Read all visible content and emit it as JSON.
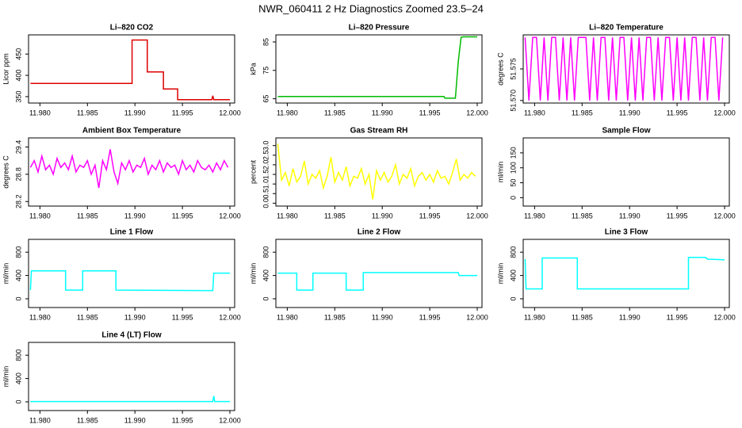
{
  "title": "NWR_060411  2 Hz Diagnostics Zoomed 23.5–24",
  "chart_data": [
    {
      "type": "line",
      "title": "Li–820 CO2",
      "ylabel": "Licor ppm",
      "color": "#dd0000",
      "x": [
        11.979,
        11.9897,
        11.9897,
        11.9913,
        11.9913,
        11.993,
        11.993,
        11.9945,
        11.9945,
        11.9981,
        11.9982,
        11.9983,
        12.0
      ],
      "values": [
        381,
        381,
        483,
        483,
        408,
        408,
        368,
        368,
        343,
        343,
        352,
        343,
        343
      ],
      "xlim": [
        11.9788,
        12.0005
      ],
      "ylim": [
        335,
        495
      ],
      "xticks": [
        {
          "value": 11.98,
          "label": "11.980"
        },
        11.985,
        {
          "value": 11.99,
          "label": "11.990"
        },
        11.995,
        {
          "value": 12,
          "label": "12.000"
        }
      ],
      "yticks": [
        350,
        400,
        450
      ]
    },
    {
      "type": "line",
      "title": "Li–820 Pressure",
      "ylabel": "kPa",
      "color": "#00bb00",
      "x": [
        11.979,
        11.9965,
        11.9966,
        11.9977,
        11.998,
        11.9983,
        11.9985,
        12.0
      ],
      "values": [
        65.8,
        65.8,
        65.2,
        65.2,
        78,
        86.6,
        86.8,
        86.8
      ],
      "xlim": [
        11.9788,
        12.0005
      ],
      "ylim": [
        63.5,
        87.5
      ],
      "xticks": [
        {
          "value": 11.98,
          "label": "11.980"
        },
        11.985,
        {
          "value": 11.99,
          "label": "11.990"
        },
        11.995,
        {
          "value": 12,
          "label": "12.000"
        }
      ],
      "yticks": [
        65,
        75,
        85
      ]
    },
    {
      "type": "line",
      "title": "Li–820 Temperature",
      "ylabel": "degrees C",
      "color": "#ff00ff",
      "x": [
        11.979,
        11.9794,
        11.9798,
        11.9802,
        11.9806,
        11.981,
        11.9814,
        11.9818,
        11.9822,
        11.9826,
        11.983,
        11.9834,
        11.9838,
        11.9842,
        11.9846,
        11.985,
        11.9854,
        11.9858,
        11.9862,
        11.9866,
        11.987,
        11.9874,
        11.9878,
        11.9882,
        11.9886,
        11.989,
        11.9894,
        11.9898,
        11.9902,
        11.9906,
        11.991,
        11.9914,
        11.9918,
        11.9922,
        11.9926,
        11.993,
        11.9934,
        11.9938,
        11.9942,
        11.9946,
        11.995,
        11.9954,
        11.9958,
        11.9962,
        11.9966,
        11.997,
        11.9974,
        11.9978,
        11.9982,
        11.9986,
        11.999,
        11.9994,
        11.9998
      ],
      "values": [
        51.58,
        51.57,
        51.58,
        51.58,
        51.57,
        51.58,
        51.57,
        51.58,
        51.58,
        51.57,
        51.58,
        51.57,
        51.58,
        51.57,
        51.58,
        51.58,
        51.58,
        51.57,
        51.58,
        51.57,
        51.58,
        51.58,
        51.57,
        51.58,
        51.57,
        51.58,
        51.58,
        51.57,
        51.58,
        51.57,
        51.58,
        51.57,
        51.58,
        51.58,
        51.57,
        51.58,
        51.57,
        51.58,
        51.58,
        51.57,
        51.58,
        51.57,
        51.58,
        51.57,
        51.58,
        51.58,
        51.57,
        51.58,
        51.57,
        51.58,
        51.58,
        51.57,
        51.58
      ],
      "xlim": [
        11.9788,
        12.0005
      ],
      "ylim": [
        51.5696,
        51.5804
      ],
      "xticks": [
        {
          "value": 11.98,
          "label": "11.980"
        },
        11.985,
        {
          "value": 11.99,
          "label": "11.990"
        },
        11.995,
        {
          "value": 12,
          "label": "12.000"
        }
      ],
      "yticks": [
        {
          "value": 51.57,
          "label": "51.570"
        },
        51.575
      ]
    },
    {
      "type": "line",
      "title": "Ambient Box Temperature",
      "ylabel": "degrees C",
      "color": "#ff00ff",
      "x": [
        11.979,
        11.9794,
        11.9798,
        11.9802,
        11.9806,
        11.981,
        11.9814,
        11.9818,
        11.9822,
        11.9826,
        11.983,
        11.9834,
        11.9838,
        11.9842,
        11.9846,
        11.985,
        11.9854,
        11.9858,
        11.9862,
        11.9866,
        11.987,
        11.9874,
        11.9878,
        11.9882,
        11.9886,
        11.989,
        11.9894,
        11.9898,
        11.9902,
        11.9906,
        11.991,
        11.9914,
        11.9918,
        11.9922,
        11.9926,
        11.993,
        11.9934,
        11.9938,
        11.9942,
        11.9946,
        11.995,
        11.9954,
        11.9958,
        11.9962,
        11.9966,
        11.997,
        11.9974,
        11.9978,
        11.9982,
        11.9986,
        11.999,
        11.9994,
        11.9998
      ],
      "values": [
        28.95,
        29.1,
        28.85,
        29.2,
        28.9,
        29.0,
        28.8,
        29.15,
        28.95,
        29.05,
        28.9,
        29.2,
        28.85,
        29.0,
        28.95,
        29.1,
        28.8,
        29.0,
        28.5,
        29.1,
        28.9,
        29.35,
        28.85,
        28.6,
        29.05,
        28.9,
        29.1,
        28.85,
        29.0,
        28.95,
        29.15,
        28.8,
        29.0,
        28.9,
        29.1,
        28.85,
        29.05,
        28.95,
        29.0,
        28.8,
        29.1,
        28.9,
        29.0,
        28.85,
        29.1,
        28.95,
        28.9,
        29.0,
        28.85,
        29.05,
        28.9,
        29.1,
        28.95
      ],
      "xlim": [
        11.9788,
        12.0005
      ],
      "ylim": [
        28.1,
        29.6
      ],
      "xticks": [
        {
          "value": 11.98,
          "label": "11.980"
        },
        11.985,
        {
          "value": 11.99,
          "label": "11.990"
        },
        11.995,
        {
          "value": 12,
          "label": "12.000"
        }
      ],
      "yticks": [
        28.2,
        28.8,
        29.4
      ]
    },
    {
      "type": "line",
      "title": "Gas Stream RH",
      "ylabel": "percent",
      "color": "#ffff00",
      "x": [
        11.979,
        11.9794,
        11.9798,
        11.9802,
        11.9806,
        11.981,
        11.9814,
        11.9818,
        11.9822,
        11.9826,
        11.983,
        11.9834,
        11.9838,
        11.9842,
        11.9846,
        11.985,
        11.9854,
        11.9858,
        11.9862,
        11.9866,
        11.987,
        11.9874,
        11.9878,
        11.9882,
        11.9886,
        11.989,
        11.9894,
        11.9898,
        11.9902,
        11.9906,
        11.991,
        11.9914,
        11.9918,
        11.9922,
        11.9926,
        11.993,
        11.9934,
        11.9938,
        11.9942,
        11.9946,
        11.995,
        11.9954,
        11.9958,
        11.9962,
        11.9966,
        11.997,
        11.9974,
        11.9978,
        11.9982,
        11.9986,
        11.999,
        11.9994,
        11.9998
      ],
      "values": [
        3.1,
        1.2,
        1.6,
        0.9,
        1.8,
        1.1,
        1.4,
        2.2,
        1.0,
        1.5,
        1.3,
        1.7,
        0.8,
        1.4,
        2.4,
        1.1,
        1.6,
        1.2,
        1.9,
        0.9,
        1.4,
        1.3,
        1.8,
        1.0,
        1.5,
        0.2,
        1.7,
        1.2,
        1.6,
        1.1,
        1.4,
        2.0,
        1.0,
        1.5,
        1.3,
        1.8,
        0.9,
        1.4,
        1.6,
        1.2,
        1.5,
        1.1,
        1.7,
        1.3,
        1.4,
        1.0,
        1.6,
        2.3,
        1.2,
        1.5,
        1.3,
        1.6,
        1.4
      ],
      "xlim": [
        11.9788,
        12.0005
      ],
      "ylim": [
        -0.15,
        3.4
      ],
      "xticks": [
        {
          "value": 11.98,
          "label": "11.980"
        },
        11.985,
        {
          "value": 11.99,
          "label": "11.990"
        },
        11.995,
        {
          "value": 12,
          "label": "12.000"
        }
      ],
      "yticks": [
        {
          "value": 0,
          "label": "0.0"
        },
        0.5,
        {
          "value": 1,
          "label": "1.0"
        },
        1.5,
        {
          "value": 2,
          "label": "2.0"
        },
        2.5,
        {
          "value": 3,
          "label": "3.0"
        }
      ]
    },
    {
      "type": "line",
      "title": "Sample Flow",
      "ylabel": "ml/min",
      "x": [],
      "values": [],
      "xlim": [
        11.9788,
        12.0005
      ],
      "ylim": [
        -28,
        200
      ],
      "xticks": [
        {
          "value": 11.98,
          "label": "11.980"
        },
        11.985,
        {
          "value": 11.99,
          "label": "11.990"
        },
        11.995,
        {
          "value": 12,
          "label": "12.000"
        }
      ],
      "yticks": [
        0,
        50,
        100,
        150
      ]
    },
    {
      "type": "line",
      "title": "Line 1 Flow",
      "ylabel": "ml/min",
      "color": "#00ffff",
      "x": [
        11.979,
        11.9791,
        11.9827,
        11.9827,
        11.9845,
        11.9845,
        11.988,
        11.988,
        11.9982,
        11.9983,
        12.0
      ],
      "values": [
        150,
        480,
        480,
        150,
        150,
        480,
        480,
        150,
        140,
        440,
        440
      ],
      "xlim": [
        11.9788,
        12.0005
      ],
      "ylim": [
        -150,
        1020
      ],
      "xticks": [
        {
          "value": 11.98,
          "label": "11.980"
        },
        11.985,
        {
          "value": 11.99,
          "label": "11.990"
        },
        11.995,
        {
          "value": 12,
          "label": "12.000"
        }
      ],
      "yticks": [
        0,
        400,
        800
      ]
    },
    {
      "type": "line",
      "title": "Line 2 Flow",
      "ylabel": "ml/min",
      "color": "#00ffff",
      "x": [
        11.979,
        11.981,
        11.981,
        11.9827,
        11.9827,
        11.9862,
        11.9862,
        11.988,
        11.988,
        11.998,
        11.9981,
        12.0
      ],
      "values": [
        440,
        440,
        150,
        150,
        440,
        440,
        150,
        150,
        450,
        450,
        400,
        400
      ],
      "xlim": [
        11.9788,
        12.0005
      ],
      "ylim": [
        -150,
        1020
      ],
      "xticks": [
        {
          "value": 11.98,
          "label": "11.980"
        },
        11.985,
        {
          "value": 11.99,
          "label": "11.990"
        },
        11.995,
        {
          "value": 12,
          "label": "12.000"
        }
      ],
      "yticks": [
        0,
        400,
        800
      ]
    },
    {
      "type": "line",
      "title": "Line 3 Flow",
      "ylabel": "ml/min",
      "color": "#00ffff",
      "x": [
        11.979,
        11.9791,
        11.9808,
        11.9808,
        11.9845,
        11.9845,
        11.9962,
        11.9962,
        11.998,
        11.9982,
        12.0
      ],
      "values": [
        680,
        170,
        170,
        700,
        700,
        170,
        170,
        710,
        710,
        680,
        670
      ],
      "xlim": [
        11.9788,
        12.0005
      ],
      "ylim": [
        -150,
        1020
      ],
      "xticks": [
        {
          "value": 11.98,
          "label": "11.980"
        },
        11.985,
        {
          "value": 11.99,
          "label": "11.990"
        },
        11.995,
        {
          "value": 12,
          "label": "12.000"
        }
      ],
      "yticks": [
        0,
        400,
        800
      ]
    },
    {
      "type": "line",
      "title": "Line 4 (LT) Flow",
      "ylabel": "ml/min",
      "color": "#00ffff",
      "x": [
        11.979,
        11.9982,
        11.9983,
        11.9984,
        12.0
      ],
      "values": [
        5,
        5,
        100,
        5,
        5
      ],
      "xlim": [
        11.9788,
        12.0005
      ],
      "ylim": [
        -150,
        1020
      ],
      "xticks": [
        {
          "value": 11.98,
          "label": "11.980"
        },
        11.985,
        {
          "value": 11.99,
          "label": "11.990"
        },
        11.995,
        {
          "value": 12,
          "label": "12.000"
        }
      ],
      "yticks": [
        0,
        400,
        800
      ]
    }
  ]
}
